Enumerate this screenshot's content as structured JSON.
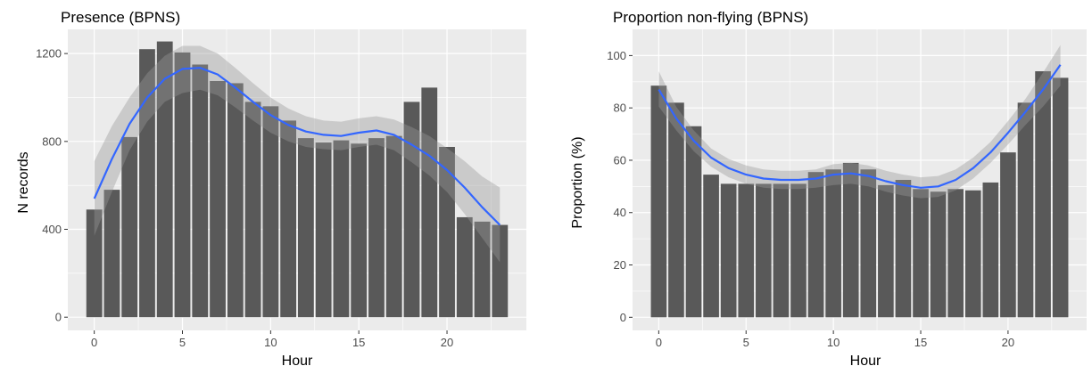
{
  "chart_data": [
    {
      "type": "bar",
      "title": "Presence (BPNS)",
      "xlabel": "Hour",
      "ylabel": "N records",
      "x": [
        0,
        1,
        2,
        3,
        4,
        5,
        6,
        7,
        8,
        9,
        10,
        11,
        12,
        13,
        14,
        15,
        16,
        17,
        18,
        19,
        20,
        21,
        22,
        23
      ],
      "values": [
        490,
        580,
        820,
        1220,
        1255,
        1205,
        1150,
        1075,
        1065,
        980,
        960,
        895,
        815,
        795,
        805,
        790,
        815,
        825,
        980,
        1045,
        775,
        455,
        435,
        420
      ],
      "xlim": [
        -1.5,
        24.5
      ],
      "ylim": [
        -60,
        1310
      ],
      "xticks": [
        0,
        5,
        10,
        15,
        20
      ],
      "yticks": [
        0,
        400,
        800,
        1200
      ],
      "smooth": {
        "x": [
          0,
          1,
          2,
          3,
          4,
          5,
          6,
          7,
          8,
          9,
          10,
          11,
          12,
          13,
          14,
          15,
          16,
          17,
          18,
          19,
          20,
          21,
          22,
          23
        ],
        "y": [
          540,
          720,
          880,
          1000,
          1085,
          1130,
          1135,
          1105,
          1045,
          980,
          920,
          875,
          845,
          830,
          825,
          840,
          850,
          830,
          785,
          735,
          670,
          590,
          500,
          420
        ],
        "lower": [
          370,
          570,
          760,
          890,
          980,
          1020,
          1035,
          1010,
          955,
          895,
          840,
          800,
          775,
          765,
          760,
          775,
          785,
          760,
          705,
          645,
          570,
          470,
          360,
          250
        ],
        "upper": [
          710,
          870,
          1000,
          1110,
          1190,
          1235,
          1235,
          1200,
          1135,
          1065,
          1000,
          950,
          915,
          895,
          890,
          905,
          915,
          900,
          865,
          825,
          770,
          710,
          640,
          590
        ]
      },
      "colors": {
        "bar": "#595959",
        "panel": "#ebebeb",
        "grid": "#ffffff",
        "smooth": "#3366ff",
        "ribbon": "#999999"
      }
    },
    {
      "type": "bar",
      "title": "Proportion non-flying (BPNS)",
      "xlabel": "Hour",
      "ylabel": "Proportion (%)",
      "x": [
        0,
        1,
        2,
        3,
        4,
        5,
        6,
        7,
        8,
        9,
        10,
        11,
        12,
        13,
        14,
        15,
        16,
        17,
        18,
        19,
        20,
        21,
        22,
        23
      ],
      "values": [
        88.5,
        82,
        73,
        54.5,
        51,
        51,
        51,
        51,
        51,
        55.5,
        56.5,
        59,
        56.5,
        50.5,
        52.5,
        49,
        48,
        49,
        48.5,
        51.5,
        63,
        82,
        94,
        91.5
      ],
      "xlim": [
        -1.5,
        24.5
      ],
      "ylim": [
        -5,
        110
      ],
      "xticks": [
        0,
        5,
        10,
        15,
        20
      ],
      "yticks": [
        0,
        20,
        40,
        60,
        80,
        100
      ],
      "smooth": {
        "x": [
          0,
          1,
          2,
          3,
          4,
          5,
          6,
          7,
          8,
          9,
          10,
          11,
          12,
          13,
          14,
          15,
          16,
          17,
          18,
          19,
          20,
          21,
          22,
          23
        ],
        "y": [
          87,
          76,
          67.5,
          61,
          57,
          54.5,
          53,
          52.5,
          52.5,
          53,
          54.5,
          55,
          54,
          52,
          50.5,
          49.5,
          50,
          52.5,
          57,
          63,
          70.5,
          78.5,
          87,
          96.5
        ],
        "lower": [
          80.5,
          71.5,
          63.5,
          57.5,
          53.5,
          51,
          49.5,
          49,
          49,
          49.5,
          50.5,
          51,
          50,
          48,
          46.5,
          45.5,
          46,
          48.5,
          53,
          59,
          66,
          73.5,
          80.5,
          88.5
        ],
        "upper": [
          94,
          80.5,
          71.5,
          64.5,
          60.5,
          58,
          56.5,
          56,
          56,
          56.5,
          58.5,
          59,
          58,
          56,
          54.5,
          53.5,
          54,
          56.5,
          61,
          67,
          75,
          83.5,
          93.5,
          104
        ]
      },
      "colors": {
        "bar": "#595959",
        "panel": "#ebebeb",
        "grid": "#ffffff",
        "smooth": "#3366ff",
        "ribbon": "#999999"
      }
    }
  ]
}
